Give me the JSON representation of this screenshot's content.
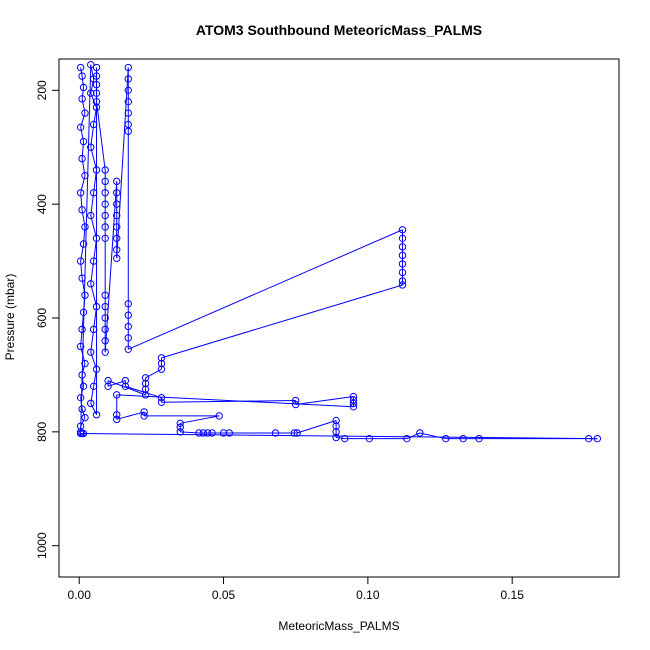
{
  "chart_data": {
    "type": "scatter",
    "title": "ATOM3 Southbound MeteoricMass_PALMS",
    "xlabel": "MeteoricMass_PALMS",
    "ylabel": "Pressure (mbar)",
    "xlim": [
      -0.007,
      0.187
    ],
    "ylim": [
      1055,
      145
    ],
    "y_reversed": true,
    "grid": false,
    "legend": "none",
    "color": "#0000ff",
    "x_ticks": [
      0.0,
      0.05,
      0.1,
      0.15
    ],
    "x_tick_labels": [
      "0.00",
      "0.05",
      "0.10",
      "0.15"
    ],
    "y_ticks": [
      200,
      400,
      600,
      800,
      1000
    ],
    "y_tick_labels": [
      "200",
      "400",
      "600",
      "800",
      "1000"
    ],
    "series": [
      {
        "points": [
          [
            0.0005,
            160
          ],
          [
            0.001,
            175
          ],
          [
            0.0015,
            195
          ],
          [
            0.001,
            215
          ],
          [
            0.002,
            240
          ],
          [
            0.0005,
            265
          ],
          [
            0.0015,
            290
          ],
          [
            0.001,
            320
          ],
          [
            0.002,
            350
          ],
          [
            0.0005,
            380
          ],
          [
            0.001,
            410
          ],
          [
            0.002,
            440
          ],
          [
            0.0015,
            470
          ],
          [
            0.0005,
            500
          ],
          [
            0.001,
            530
          ],
          [
            0.002,
            560
          ],
          [
            0.0015,
            590
          ],
          [
            0.001,
            620
          ],
          [
            0.0005,
            650
          ],
          [
            0.002,
            680
          ],
          [
            0.001,
            700
          ],
          [
            0.0015,
            720
          ],
          [
            0.0005,
            740
          ],
          [
            0.001,
            760
          ],
          [
            0.002,
            775
          ],
          [
            0.0005,
            790
          ],
          [
            0.0005,
            800
          ],
          [
            0.004,
            155
          ],
          [
            0.005,
            180
          ],
          [
            0.004,
            205
          ],
          [
            0.006,
            230
          ],
          [
            0.005,
            260
          ],
          [
            0.004,
            300
          ],
          [
            0.006,
            340
          ],
          [
            0.005,
            380
          ],
          [
            0.004,
            420
          ],
          [
            0.006,
            460
          ],
          [
            0.005,
            500
          ],
          [
            0.004,
            540
          ],
          [
            0.006,
            580
          ],
          [
            0.005,
            620
          ],
          [
            0.004,
            660
          ],
          [
            0.006,
            690
          ],
          [
            0.005,
            720
          ],
          [
            0.004,
            750
          ],
          [
            0.006,
            770
          ],
          [
            0.006,
            160
          ],
          [
            0.006,
            175
          ],
          [
            0.006,
            190
          ],
          [
            0.006,
            205
          ],
          [
            0.006,
            220
          ],
          [
            0.009,
            340
          ],
          [
            0.009,
            360
          ],
          [
            0.009,
            380
          ],
          [
            0.009,
            400
          ],
          [
            0.009,
            420
          ],
          [
            0.009,
            440
          ],
          [
            0.009,
            460
          ],
          [
            0.009,
            560
          ],
          [
            0.009,
            580
          ],
          [
            0.009,
            600
          ],
          [
            0.009,
            620
          ],
          [
            0.009,
            640
          ],
          [
            0.009,
            660
          ],
          [
            0.013,
            360
          ],
          [
            0.013,
            380
          ],
          [
            0.013,
            400
          ],
          [
            0.013,
            420
          ],
          [
            0.013,
            440
          ],
          [
            0.013,
            460
          ],
          [
            0.013,
            480
          ],
          [
            0.013,
            495
          ],
          [
            0.017,
            160
          ],
          [
            0.017,
            180
          ],
          [
            0.017,
            200
          ],
          [
            0.017,
            220
          ],
          [
            0.017,
            240
          ],
          [
            0.017,
            260
          ],
          [
            0.017,
            272
          ],
          [
            0.017,
            575
          ],
          [
            0.017,
            595
          ],
          [
            0.017,
            615
          ],
          [
            0.017,
            635
          ],
          [
            0.017,
            655
          ],
          [
            0.112,
            445
          ],
          [
            0.112,
            460
          ],
          [
            0.112,
            475
          ],
          [
            0.112,
            490
          ],
          [
            0.112,
            505
          ],
          [
            0.112,
            520
          ],
          [
            0.112,
            535
          ],
          [
            0.112,
            542
          ],
          [
            0.0285,
            670
          ],
          [
            0.0285,
            680
          ],
          [
            0.0285,
            690
          ],
          [
            0.023,
            705
          ],
          [
            0.023,
            715
          ],
          [
            0.023,
            725
          ],
          [
            0.023,
            735
          ],
          [
            0.01,
            710
          ],
          [
            0.01,
            720
          ],
          [
            0.016,
            710
          ],
          [
            0.016,
            720
          ],
          [
            0.0285,
            740
          ],
          [
            0.0285,
            748
          ],
          [
            0.075,
            745
          ],
          [
            0.075,
            752
          ],
          [
            0.095,
            738
          ],
          [
            0.095,
            744
          ],
          [
            0.095,
            750
          ],
          [
            0.095,
            756
          ],
          [
            0.013,
            735
          ],
          [
            0.013,
            770
          ],
          [
            0.013,
            778
          ],
          [
            0.0225,
            765
          ],
          [
            0.0225,
            772
          ],
          [
            0.0485,
            772
          ],
          [
            0.035,
            785
          ],
          [
            0.035,
            792
          ],
          [
            0.035,
            800
          ],
          [
            0.0415,
            802
          ],
          [
            0.043,
            802
          ],
          [
            0.0445,
            802
          ],
          [
            0.046,
            802
          ],
          [
            0.05,
            802
          ],
          [
            0.052,
            802
          ],
          [
            0.068,
            802
          ],
          [
            0.0745,
            802
          ],
          [
            0.0755,
            802
          ],
          [
            0.089,
            780
          ],
          [
            0.089,
            790
          ],
          [
            0.089,
            800
          ],
          [
            0.089,
            810
          ],
          [
            0.092,
            812
          ],
          [
            0.1005,
            812
          ],
          [
            0.1135,
            812
          ],
          [
            0.118,
            802
          ],
          [
            0.127,
            812
          ],
          [
            0.133,
            812
          ],
          [
            0.1385,
            812
          ],
          [
            0.1765,
            812
          ],
          [
            0.1795,
            812
          ],
          [
            0.0005,
            803
          ],
          [
            0.001,
            803
          ],
          [
            0.0015,
            803
          ]
        ]
      }
    ]
  }
}
